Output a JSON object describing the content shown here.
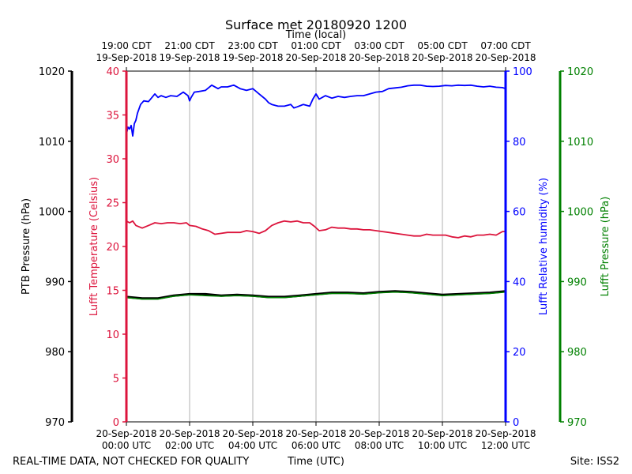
{
  "chart_data": {
    "type": "line",
    "title": "Surface met 20180920 1200",
    "top_axis_label": "Time (local)",
    "top_ticks": [
      [
        "19:00 CDT",
        "19-Sep-2018"
      ],
      [
        "21:00 CDT",
        "19-Sep-2018"
      ],
      [
        "23:00 CDT",
        "19-Sep-2018"
      ],
      [
        "01:00 CDT",
        "20-Sep-2018"
      ],
      [
        "03:00 CDT",
        "20-Sep-2018"
      ],
      [
        "05:00 CDT",
        "20-Sep-2018"
      ],
      [
        "07:00 CDT",
        "20-Sep-2018"
      ]
    ],
    "bottom_axis_label": "Time (UTC)",
    "bottom_ticks": [
      [
        "20-Sep-2018",
        "00:00 UTC"
      ],
      [
        "20-Sep-2018",
        "02:00 UTC"
      ],
      [
        "20-Sep-2018",
        "04:00 UTC"
      ],
      [
        "20-Sep-2018",
        "06:00 UTC"
      ],
      [
        "20-Sep-2018",
        "08:00 UTC"
      ],
      [
        "20-Sep-2018",
        "10:00 UTC"
      ],
      [
        "20-Sep-2018",
        "12:00 UTC"
      ]
    ],
    "xlim": [
      0,
      12
    ],
    "grid_x": true,
    "axes": {
      "ptb_pressure": {
        "label": "PTB Pressure (hPa)",
        "color": "#000000",
        "ylim": [
          970,
          1020
        ],
        "ticks": [
          970,
          980,
          990,
          1000,
          1010,
          1020
        ]
      },
      "temperature": {
        "label": "Lufft Temperature (Celsius)",
        "color": "#dc143c",
        "ylim": [
          0,
          40
        ],
        "ticks": [
          0,
          5,
          10,
          15,
          20,
          25,
          30,
          35,
          40
        ]
      },
      "humidity": {
        "label": "Lufft Relative humidity (%)",
        "color": "#0000ff",
        "ylim": [
          0,
          100
        ],
        "ticks": [
          0,
          20,
          40,
          60,
          80,
          100
        ]
      },
      "lufft_pressure": {
        "label": "Lufft Pressure (hPa)",
        "color": "#008000",
        "ylim": [
          970,
          1020
        ],
        "ticks": [
          970,
          980,
          990,
          1000,
          1010,
          1020
        ]
      }
    },
    "series": [
      {
        "name": "Lufft Temperature",
        "axis": "temperature",
        "color": "#dc143c",
        "x": [
          0,
          0.1,
          0.2,
          0.3,
          0.5,
          0.7,
          0.9,
          1.1,
          1.3,
          1.5,
          1.7,
          1.9,
          2.0,
          2.2,
          2.4,
          2.6,
          2.8,
          3.0,
          3.2,
          3.4,
          3.6,
          3.8,
          4.0,
          4.2,
          4.4,
          4.6,
          4.8,
          5.0,
          5.2,
          5.4,
          5.6,
          5.8,
          5.95,
          6.1,
          6.3,
          6.5,
          6.7,
          6.9,
          7.1,
          7.3,
          7.5,
          7.7,
          7.9,
          8.1,
          8.3,
          8.5,
          8.7,
          8.9,
          9.1,
          9.3,
          9.5,
          9.7,
          9.9,
          10.1,
          10.3,
          10.5,
          10.7,
          10.9,
          11.1,
          11.3,
          11.5,
          11.7,
          11.9,
          12.0
        ],
        "values": [
          22.9,
          22.7,
          22.9,
          22.4,
          22.1,
          22.4,
          22.7,
          22.6,
          22.7,
          22.7,
          22.6,
          22.7,
          22.4,
          22.3,
          22.0,
          21.8,
          21.4,
          21.5,
          21.6,
          21.6,
          21.6,
          21.8,
          21.7,
          21.5,
          21.8,
          22.4,
          22.7,
          22.9,
          22.8,
          22.9,
          22.7,
          22.7,
          22.3,
          21.8,
          21.9,
          22.2,
          22.1,
          22.1,
          22.0,
          22.0,
          21.9,
          21.9,
          21.8,
          21.7,
          21.6,
          21.5,
          21.4,
          21.3,
          21.2,
          21.2,
          21.4,
          21.3,
          21.3,
          21.3,
          21.1,
          21.0,
          21.2,
          21.1,
          21.3,
          21.3,
          21.4,
          21.3,
          21.7,
          21.7
        ]
      },
      {
        "name": "Lufft Relative humidity",
        "axis": "humidity",
        "color": "#0000ff",
        "x": [
          0,
          0.05,
          0.1,
          0.15,
          0.2,
          0.25,
          0.3,
          0.35,
          0.45,
          0.55,
          0.7,
          0.9,
          1.0,
          1.1,
          1.25,
          1.4,
          1.6,
          1.8,
          1.95,
          2.0,
          2.05,
          2.15,
          2.3,
          2.5,
          2.7,
          2.9,
          3.0,
          3.2,
          3.4,
          3.6,
          3.8,
          4.0,
          4.2,
          4.4,
          4.5,
          4.6,
          4.8,
          5.0,
          5.2,
          5.3,
          5.4,
          5.6,
          5.8,
          5.9,
          6.0,
          6.1,
          6.3,
          6.5,
          6.7,
          6.9,
          7.1,
          7.3,
          7.5,
          7.7,
          7.9,
          8.1,
          8.3,
          8.5,
          8.7,
          8.9,
          9.1,
          9.3,
          9.5,
          9.7,
          9.9,
          10.1,
          10.3,
          10.5,
          10.7,
          10.9,
          11.1,
          11.3,
          11.5,
          11.7,
          11.9,
          12.0
        ],
        "values": [
          82.0,
          84.0,
          83.5,
          84.5,
          81.5,
          85.0,
          86.0,
          88.0,
          90.5,
          91.5,
          91.3,
          93.5,
          92.5,
          93.0,
          92.5,
          93.0,
          92.8,
          94.0,
          93.0,
          91.5,
          92.5,
          94.0,
          94.2,
          94.5,
          96.0,
          95.0,
          95.5,
          95.5,
          96.0,
          95.0,
          94.5,
          95.0,
          93.5,
          92.0,
          91.0,
          90.5,
          90.0,
          90.0,
          90.5,
          89.5,
          89.8,
          90.5,
          90.0,
          92.0,
          93.5,
          92.0,
          93.0,
          92.3,
          92.8,
          92.5,
          92.8,
          93.0,
          93.0,
          93.5,
          94.0,
          94.2,
          95.0,
          95.2,
          95.4,
          95.8,
          96.0,
          96.0,
          95.7,
          95.6,
          95.7,
          95.9,
          95.8,
          96.0,
          95.9,
          96.0,
          95.7,
          95.5,
          95.7,
          95.4,
          95.3,
          95.0
        ]
      },
      {
        "name": "PTB Pressure",
        "axis": "ptb_pressure",
        "color": "#000000",
        "x": [
          0,
          0.5,
          1.0,
          1.5,
          2.0,
          2.5,
          3.0,
          3.5,
          4.0,
          4.5,
          5.0,
          5.5,
          6.0,
          6.5,
          7.0,
          7.5,
          8.0,
          8.5,
          9.0,
          9.5,
          10.0,
          10.5,
          11.0,
          11.5,
          12.0
        ],
        "values": [
          987.8,
          987.6,
          987.6,
          988.0,
          988.2,
          988.2,
          988.0,
          988.1,
          988.0,
          987.8,
          987.8,
          988.0,
          988.2,
          988.4,
          988.4,
          988.3,
          988.5,
          988.6,
          988.5,
          988.3,
          988.1,
          988.2,
          988.3,
          988.4,
          988.6
        ]
      },
      {
        "name": "Lufft Pressure",
        "axis": "lufft_pressure",
        "color": "#008000",
        "x": [
          0,
          0.5,
          1.0,
          1.5,
          2.0,
          2.5,
          3.0,
          3.5,
          4.0,
          4.5,
          5.0,
          5.5,
          6.0,
          6.5,
          7.0,
          7.5,
          8.0,
          8.5,
          9.0,
          9.5,
          10.0,
          10.5,
          11.0,
          11.5,
          12.0
        ],
        "values": [
          987.7,
          987.5,
          987.5,
          987.9,
          988.1,
          988.0,
          987.9,
          988.0,
          987.9,
          987.7,
          987.7,
          987.9,
          988.1,
          988.3,
          988.3,
          988.2,
          988.4,
          988.5,
          988.4,
          988.2,
          988.0,
          988.1,
          988.2,
          988.3,
          988.5
        ]
      }
    ]
  },
  "footer": {
    "quality_note": "REAL-TIME DATA, NOT CHECKED FOR QUALITY",
    "site": "Site: ISS2"
  }
}
